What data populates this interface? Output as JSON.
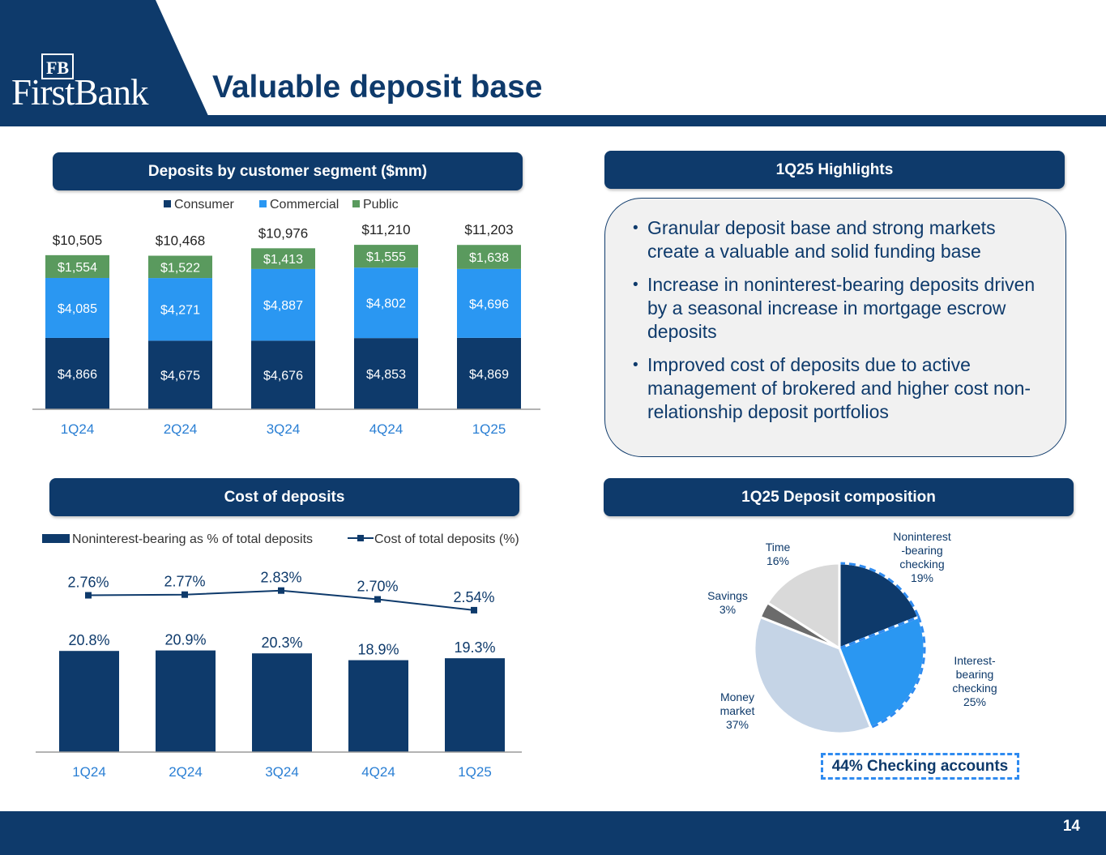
{
  "header": {
    "logo_mark": "FB",
    "logo_text": "FirstBank",
    "title": "Valuable deposit base"
  },
  "colors": {
    "navy": "#0e3a6b",
    "consumer": "#0e3a6b",
    "commercial": "#2a97f2",
    "public": "#5a9a5e",
    "highlight_bg": "#f1f1f1"
  },
  "panels": {
    "deposits_by_segment": "Deposits by customer segment ($mm)",
    "highlights": "1Q25 Highlights",
    "cost_of_deposits": "Cost of deposits",
    "composition": "1Q25 Deposit composition"
  },
  "highlights": {
    "bullet_symbol": "•",
    "items": [
      "Granular deposit base and strong markets create a valuable and solid funding base",
      "Increase in noninterest-bearing deposits driven by a seasonal increase in mortgage escrow deposits",
      "Improved cost of deposits due to active management of brokered and higher cost non-relationship deposit portfolios"
    ]
  },
  "chart_data": [
    {
      "type": "bar",
      "stacked": true,
      "title": "Deposits by customer segment ($mm)",
      "categories": [
        "1Q24",
        "2Q24",
        "3Q24",
        "4Q24",
        "1Q25"
      ],
      "series": [
        {
          "name": "Consumer",
          "values": [
            4866,
            4675,
            4676,
            4853,
            4869
          ],
          "labels": [
            "$4,866",
            "$4,675",
            "$4,676",
            "$4,853",
            "$4,869"
          ]
        },
        {
          "name": "Commercial",
          "values": [
            4085,
            4271,
            4887,
            4802,
            4696
          ],
          "labels": [
            "$4,085",
            "$4,271",
            "$4,887",
            "$4,802",
            "$4,696"
          ]
        },
        {
          "name": "Public",
          "values": [
            1554,
            1522,
            1413,
            1555,
            1638
          ],
          "labels": [
            "$1,554",
            "$1,522",
            "$1,413",
            "$1,555",
            "$1,638"
          ]
        }
      ],
      "totals": [
        10505,
        10468,
        10976,
        11210,
        11203
      ],
      "total_labels": [
        "$10,505",
        "$10,468",
        "$10,976",
        "$11,210",
        "$11,203"
      ],
      "legend_position": "top",
      "ylim": [
        0,
        12000
      ],
      "grid": false
    },
    {
      "type": "bar",
      "title": "Cost of deposits",
      "categories": [
        "1Q24",
        "2Q24",
        "3Q24",
        "4Q24",
        "1Q25"
      ],
      "series": [
        {
          "name": "Noninterest-bearing as % of total deposits",
          "kind": "bar",
          "values": [
            20.8,
            20.9,
            20.3,
            18.9,
            19.3
          ],
          "labels": [
            "20.8%",
            "20.9%",
            "20.3%",
            "18.9%",
            "19.3%"
          ]
        },
        {
          "name": "Cost of total deposits (%)",
          "kind": "line",
          "values": [
            2.76,
            2.77,
            2.83,
            2.7,
            2.54
          ],
          "labels": [
            "2.76%",
            "2.77%",
            "2.83%",
            "2.70%",
            "2.54%"
          ]
        }
      ],
      "bar_ylim": [
        0,
        25
      ],
      "line_ylim": [
        0,
        3.2
      ],
      "legend_position": "top",
      "grid": false
    },
    {
      "type": "pie",
      "title": "1Q25 Deposit composition",
      "slices": [
        {
          "name": "Noninterest -bearing checking",
          "lines": [
            "Noninterest",
            "-bearing",
            "checking"
          ],
          "value": 19,
          "label": "19%",
          "color": "#0e3a6b",
          "dashed": true
        },
        {
          "name": "Interest- bearing checking",
          "lines": [
            "Interest-",
            "bearing",
            "checking"
          ],
          "value": 25,
          "label": "25%",
          "color": "#2a97f2",
          "dashed": true
        },
        {
          "name": "Money market",
          "lines": [
            "Money",
            "market"
          ],
          "value": 37,
          "label": "37%",
          "color": "#c5d4e6",
          "dashed": false
        },
        {
          "name": "Savings",
          "lines": [
            "Savings"
          ],
          "value": 3,
          "label": "3%",
          "color": "#6b6b6b",
          "dashed": false
        },
        {
          "name": "Time",
          "lines": [
            "Time"
          ],
          "value": 16,
          "label": "16%",
          "color": "#d9d9d9",
          "dashed": false
        }
      ],
      "callout": "44% Checking accounts"
    }
  ],
  "footer": {
    "page_number": "14"
  }
}
